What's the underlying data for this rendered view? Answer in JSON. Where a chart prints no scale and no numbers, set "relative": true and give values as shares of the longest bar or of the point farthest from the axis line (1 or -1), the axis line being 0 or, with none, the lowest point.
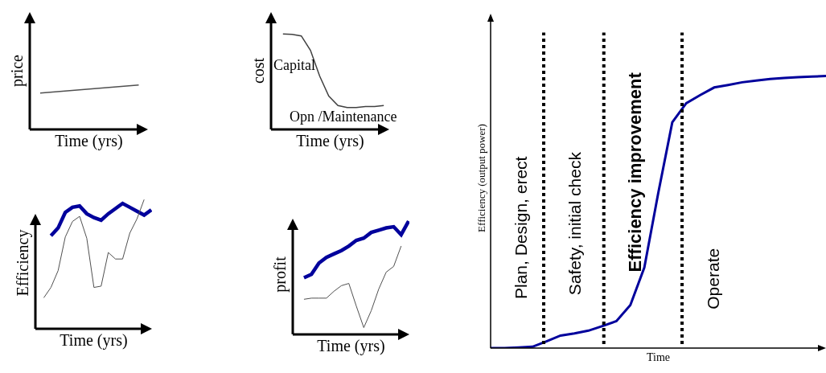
{
  "chart_data": [
    {
      "type": "line",
      "relative": true,
      "xlabel": "Time (yrs)",
      "ylabel": "price",
      "categories": [
        null,
        null
      ],
      "series": [
        {
          "color": "#505050",
          "values": [
            0.82,
            1
          ]
        }
      ]
    },
    {
      "type": "line",
      "relative": true,
      "xlabel": "Time (yrs)",
      "ylabel": "cost",
      "categories": [
        null,
        null,
        null,
        null,
        null,
        null,
        null,
        null,
        null,
        null,
        null,
        null
      ],
      "series": [
        {
          "color": "#404040",
          "values": [
            1,
            0.997,
            0.98,
            0.83,
            0.56,
            0.35,
            0.25,
            0.23,
            0.23,
            0.24,
            0.24,
            0.25
          ]
        }
      ],
      "annotations": [
        "Capital",
        "Opn /Maintenance"
      ]
    },
    {
      "type": "line",
      "relative": true,
      "xlabel": "Time (yrs)",
      "ylabel": "Efficiency",
      "categories": [
        null,
        null,
        null,
        null,
        null,
        null,
        null,
        null,
        null,
        null,
        null,
        null,
        null,
        null,
        null,
        null
      ],
      "series": [
        {
          "color": "#00009c",
          "values": [
            null,
            0.72,
            0.78,
            0.9,
            0.94,
            0.95,
            0.89,
            0.86,
            0.84,
            0.89,
            0.93,
            0.97,
            0.94,
            0.91,
            0.88,
            0.92
          ]
        },
        {
          "color": "#505050",
          "values": [
            0.24,
            0.32,
            0.45,
            0.71,
            0.83,
            0.87,
            0.7,
            0.32,
            0.33,
            0.59,
            0.54,
            0.54,
            0.74,
            0.85,
            1,
            null
          ]
        }
      ]
    },
    {
      "type": "line",
      "relative": true,
      "xlabel": "Time (yrs)",
      "ylabel": "profit",
      "categories": [
        null,
        null,
        null,
        null,
        null,
        null,
        null,
        null,
        null,
        null,
        null,
        null,
        null,
        null,
        null
      ],
      "series": [
        {
          "color": "#00009c",
          "values": [
            0.5,
            0.53,
            0.63,
            0.68,
            0.71,
            0.74,
            0.78,
            0.83,
            0.85,
            0.9,
            0.92,
            0.94,
            0.95,
            0.88,
            1
          ]
        },
        {
          "color": "#505050",
          "values": [
            0.31,
            0.32,
            0.32,
            0.32,
            0.38,
            0.43,
            0.45,
            0.25,
            0.06,
            0.21,
            0.4,
            0.55,
            0.6,
            0.78,
            null
          ]
        }
      ]
    },
    {
      "type": "line",
      "relative": true,
      "xlabel": "Time",
      "ylabel": "Efficiency (output power)",
      "categories": [
        null,
        null,
        null,
        null,
        null,
        null,
        null,
        null,
        null,
        null,
        null,
        null,
        null,
        null,
        null,
        null,
        null,
        null,
        null,
        null,
        null,
        null,
        null,
        null,
        null
      ],
      "series": [
        {
          "color": "#00009c",
          "values": [
            0,
            0,
            0.002,
            0.005,
            0.025,
            0.046,
            0.054,
            0.064,
            0.081,
            0.099,
            0.158,
            0.296,
            0.571,
            0.83,
            0.9,
            0.93,
            0.958,
            0.967,
            0.977,
            0.983,
            0.989,
            0.993,
            0.996,
            0.998,
            1
          ]
        }
      ],
      "annotations": [
        "Plan, Design, erect",
        "Safety, initial check",
        "Efficiency improvement",
        "Operate"
      ]
    }
  ]
}
